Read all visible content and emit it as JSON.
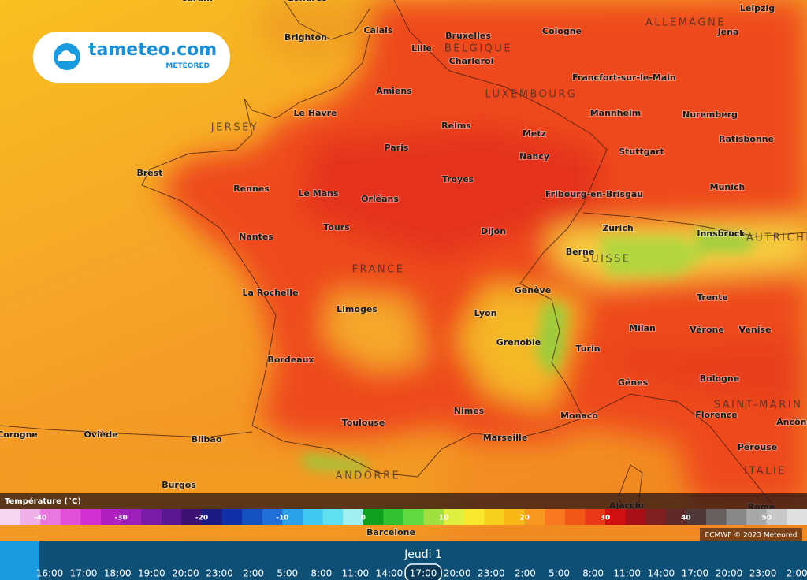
{
  "logo": {
    "name": "tameteo.com",
    "tagline": "METEORED"
  },
  "cities": [
    "Cardiff",
    "Londres",
    "Brighton",
    "Calais",
    "Bruxelles",
    "Lille",
    "Charleroi",
    "Cologne",
    "Leipzig",
    "Jena",
    "Francfort-sur-le-Main",
    "Amiens",
    "Le Havre",
    "Reims",
    "Metz",
    "Mannheim",
    "Nuremberg",
    "Ratisbonne",
    "Paris",
    "Stuttgart",
    "Nancy",
    "Brest",
    "Rennes",
    "Le Mans",
    "Orléans",
    "Troyes",
    "Fribourg-en-Brisgau",
    "Munich",
    "Nantes",
    "Tours",
    "Dijon",
    "Zurich",
    "Innsbruck",
    "Berne",
    "La Rochelle",
    "Genève",
    "Trente",
    "Limoges",
    "Lyon",
    "Milan",
    "Vérone",
    "Venise",
    "Grenoble",
    "Turin",
    "Bordeaux",
    "Bologne",
    "Gênes",
    "Nimes",
    "Monaco",
    "Florence",
    "Toulouse",
    "Ancône",
    "Corogne",
    "Oviède",
    "Bilbao",
    "Marseille",
    "Pérouse",
    "Burgos",
    "Ajaccio",
    "Rome",
    "Barcelone"
  ],
  "countries": [
    "ALLEMAGNE",
    "BELGIQUE",
    "LUXEMBOURG",
    "JERSEY",
    "AUTRICHE",
    "SUISSE",
    "FRANCE",
    "SAINT-MARIN",
    "ITALIE",
    "ANDORRE"
  ],
  "legend": {
    "title": "Température (°C)",
    "range": [
      -45,
      55
    ],
    "ticks": [
      -40,
      -30,
      -20,
      -10,
      0,
      10,
      20,
      30,
      40,
      50
    ],
    "colors": [
      "#f6d6f0",
      "#f0b0e8",
      "#e878e0",
      "#e050d8",
      "#d030d0",
      "#b020c0",
      "#9a20b8",
      "#7a1ca8",
      "#5a1890",
      "#3a1070",
      "#1a1a80",
      "#1030a8",
      "#1450c0",
      "#2070d8",
      "#2aa0e8",
      "#40c8f0",
      "#60e0f0",
      "#a0f0f0",
      "#10a020",
      "#30c030",
      "#60d840",
      "#a0e040",
      "#e0f040",
      "#f8e830",
      "#f8d020",
      "#f8b818",
      "#f89820",
      "#f87820",
      "#f05818",
      "#e83818",
      "#d01010",
      "#a81018",
      "#802020",
      "#602828",
      "#503838",
      "#686060",
      "#888888",
      "#a8a8a8",
      "#c8c8c8",
      "#e0e0e0"
    ]
  },
  "credit": "ECMWF © 2023 Meteored",
  "timeline": {
    "day": "Jeudi 1",
    "selected": 11,
    "times": [
      "16:00",
      "17:00",
      "18:00",
      "19:00",
      "20:00",
      "23:00",
      "2:00",
      "5:00",
      "8:00",
      "11:00",
      "14:00",
      "17:00",
      "20:00",
      "23:00",
      "2:00",
      "5:00",
      "8:00",
      "11:00",
      "14:00",
      "17:00",
      "20:00",
      "23:00",
      "2:00"
    ]
  }
}
